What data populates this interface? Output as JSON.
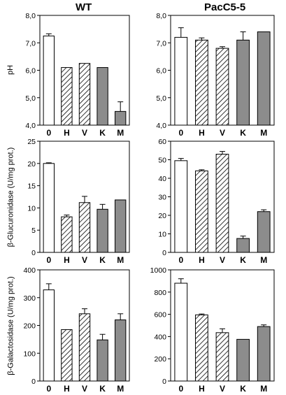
{
  "figure": {
    "column_titles": [
      "WT",
      "PacC5-5"
    ],
    "row_ylabels": [
      "pH",
      "β-Glucuronidase (U/mg prot.)",
      "β-Galactosidase (U/mg prot.)"
    ],
    "colors": {
      "gray_fill": "#8c8c8c",
      "white_fill": "#ffffff",
      "ink": "#000000"
    }
  },
  "chart_data": [
    {
      "type": "bar",
      "column": "WT",
      "row": "pH",
      "categories": [
        "0",
        "H",
        "V",
        "K",
        "M"
      ],
      "patterns": [
        "open",
        "hatched",
        "hatched",
        "gray",
        "gray"
      ],
      "values": [
        7.25,
        6.1,
        6.25,
        6.1,
        4.5
      ],
      "errors": [
        0.08,
        0,
        0,
        0,
        0.35
      ],
      "ylim": [
        4.0,
        8.0
      ],
      "yticks": [
        4.0,
        5.0,
        6.0,
        7.0,
        8.0
      ],
      "ytick_labels": [
        "4,0",
        "5,0",
        "6,0",
        "7,0",
        "8,0"
      ]
    },
    {
      "type": "bar",
      "column": "PacC5-5",
      "row": "pH",
      "categories": [
        "0",
        "H",
        "V",
        "K",
        "M"
      ],
      "patterns": [
        "open",
        "hatched",
        "hatched",
        "gray",
        "gray"
      ],
      "values": [
        7.2,
        7.1,
        6.8,
        7.1,
        7.4
      ],
      "errors": [
        0.35,
        0.08,
        0.06,
        0.3,
        0
      ],
      "ylim": [
        4.0,
        8.0
      ],
      "yticks": [
        4.0,
        5.0,
        6.0,
        7.0,
        8.0
      ],
      "ytick_labels": [
        "4,0",
        "5,0",
        "6,0",
        "7,0",
        "8,0"
      ]
    },
    {
      "type": "bar",
      "column": "WT",
      "row": "β-Glucuronidase (U/mg prot.)",
      "categories": [
        "0",
        "H",
        "V",
        "K",
        "M"
      ],
      "patterns": [
        "open",
        "hatched",
        "hatched",
        "gray",
        "gray"
      ],
      "values": [
        20,
        8,
        11.2,
        9.7,
        11.8
      ],
      "errors": [
        0.15,
        0.4,
        1.4,
        1.1,
        0
      ],
      "ylim": [
        0,
        25
      ],
      "yticks": [
        0,
        5,
        10,
        15,
        20,
        25
      ],
      "ytick_labels": [
        "0",
        "5",
        "10",
        "15",
        "20",
        "25"
      ]
    },
    {
      "type": "bar",
      "column": "PacC5-5",
      "row": "β-Glucuronidase (U/mg prot.)",
      "categories": [
        "0",
        "H",
        "V",
        "K",
        "M"
      ],
      "patterns": [
        "open",
        "hatched",
        "hatched",
        "gray",
        "gray"
      ],
      "values": [
        49.5,
        44,
        53,
        7.5,
        22
      ],
      "errors": [
        1.2,
        0.6,
        1.5,
        1.3,
        1.0
      ],
      "ylim": [
        0,
        60
      ],
      "yticks": [
        0,
        10,
        20,
        30,
        40,
        50,
        60
      ],
      "ytick_labels": [
        "0",
        "10",
        "20",
        "30",
        "40",
        "50",
        "60"
      ]
    },
    {
      "type": "bar",
      "column": "WT",
      "row": "β-Galactosidase (U/mg prot.)",
      "categories": [
        "0",
        "H",
        "V",
        "K",
        "M"
      ],
      "patterns": [
        "open",
        "hatched",
        "hatched",
        "gray",
        "gray"
      ],
      "values": [
        328,
        185,
        242,
        148,
        220
      ],
      "errors": [
        22,
        0,
        18,
        20,
        22
      ],
      "ylim": [
        0,
        400
      ],
      "yticks": [
        0,
        100,
        200,
        300,
        400
      ],
      "ytick_labels": [
        "0",
        "100",
        "200",
        "300",
        "400"
      ]
    },
    {
      "type": "bar",
      "column": "PacC5-5",
      "row": "β-Galactosidase (U/mg prot.)",
      "categories": [
        "0",
        "H",
        "V",
        "K",
        "M"
      ],
      "patterns": [
        "open",
        "hatched",
        "hatched",
        "gray",
        "gray"
      ],
      "values": [
        880,
        595,
        435,
        375,
        490
      ],
      "errors": [
        40,
        8,
        35,
        0,
        15
      ],
      "ylim": [
        0,
        1000
      ],
      "yticks": [
        0,
        200,
        400,
        600,
        800,
        1000
      ],
      "ytick_labels": [
        "0",
        "200",
        "400",
        "600",
        "800",
        "1000"
      ]
    }
  ]
}
